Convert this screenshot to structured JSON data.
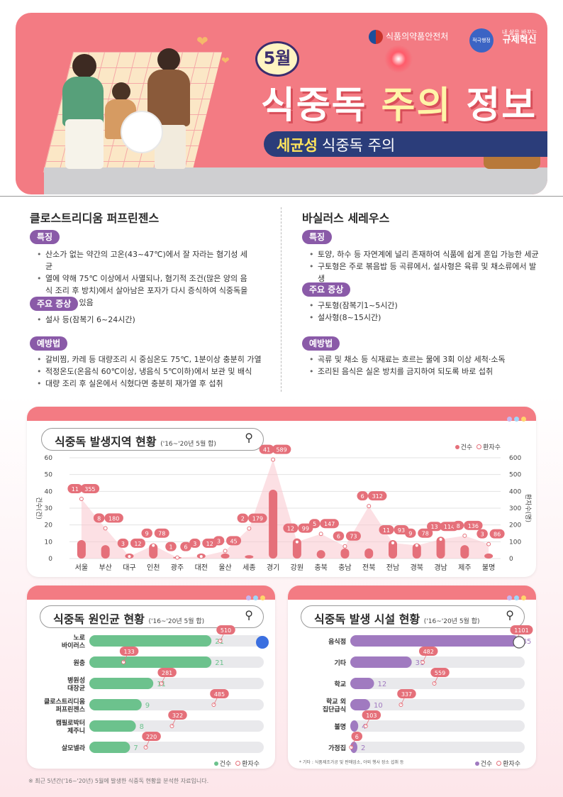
{
  "header": {
    "month": "5월",
    "title_a": "식중독 ",
    "title_b": "주의",
    "title_c": " 정보",
    "sub_bold": "세균성",
    "sub_rest": "식중독 주의",
    "logo_mfds": "식품의약품안전처",
    "logo_badge": "적극행정",
    "logo_reg_top": "내 삶을 바꾸는",
    "logo_reg": "규제혁신",
    "accent": "#f37b83",
    "navy": "#2b3d7a",
    "yellow": "#ffe45c"
  },
  "left": {
    "title": "클로스트리디움 퍼프린젠스",
    "tag1": "특징",
    "feat": [
      "산소가 없는 약간의 고온(43~47℃)에서 잘 자라는 혐기성 세균",
      "열에 약해 75℃ 이상에서 사멸되나, 혐기적 조건(많은 양의 음식 조리 후 방치)에서 살아남은 포자가 다시 증식하여 식중독을 유발할 수 있음"
    ],
    "tag2": "주요 증상",
    "symp": [
      "설사 등(잠복기 6~24시간)"
    ],
    "tag3": "예방법",
    "prev": [
      "갈비찜, 카레 등 대량조리 시 중심온도 75℃, 1분이상 충분히 가열",
      "적정온도(온음식 60℃이상, 냉음식 5℃이하)에서 보관 및 배식",
      "대량 조리 후 실온에서 식혔다면 충분히 재가열 후 섭취"
    ]
  },
  "right": {
    "title": "바실러스 세레우스",
    "tag1": "특징",
    "feat": [
      "토양, 하수 등 자연계에 널리 존재하여 식품에 쉽게 혼입 가능한 세균",
      "구토형은 주로 볶음밥 등 곡류에서, 설사형은 육류 및 채소류에서 발생"
    ],
    "tag2": "주요 증상",
    "symp": [
      "구토형(잠복기1~5시간)",
      "설사형(8~15시간)"
    ],
    "tag3": "예방법",
    "prev": [
      "곡류 및 채소 등 식재료는 흐르는 물에 3회 이상 세척·소독",
      "조리된 음식은 실온 방치를 금지하여 되도록 바로 섭취"
    ]
  },
  "legend": {
    "cases": "건수",
    "patients": "환자수",
    "case_color": "#e5707a"
  },
  "chart_data": [
    {
      "type": "bar",
      "title": "식중독 발생지역 현황",
      "subtitle": "('16~'20년 5월 합)",
      "ylabel": "건수(건)",
      "y2label": "환자수(명)",
      "ylim": [
        0,
        60
      ],
      "y2lim": [
        0,
        600
      ],
      "yticks": [
        0,
        10,
        20,
        30,
        40,
        50,
        60
      ],
      "y2ticks": [
        0,
        100,
        200,
        300,
        400,
        500,
        600
      ],
      "categories": [
        "서울",
        "부산",
        "대구",
        "인천",
        "광주",
        "대전",
        "울산",
        "세종",
        "경기",
        "강원",
        "충북",
        "충남",
        "전북",
        "전남",
        "경북",
        "경남",
        "제주",
        "불명"
      ],
      "series": [
        {
          "name": "건수",
          "values": [
            11,
            8,
            3,
            9,
            1,
            3,
            3,
            2,
            41,
            12,
            5,
            6,
            6,
            11,
            9,
            13,
            8,
            3
          ]
        },
        {
          "name": "환자수",
          "values": [
            355,
            180,
            12,
            78,
            6,
            12,
            45,
            179,
            589,
            99,
            147,
            73,
            312,
            93,
            78,
            114,
            136,
            86
          ]
        }
      ]
    },
    {
      "type": "bar",
      "title": "식중독 원인균 현황",
      "subtitle": "('16~'20년 5월 합)",
      "categories": [
        "노로\n바이러스",
        "원충",
        "병원성\n대장균",
        "클로스트리디움\n퍼프린젠스",
        "캠필로박터\n제주니",
        "살모넬라"
      ],
      "series": [
        {
          "name": "건수",
          "values": [
            21,
            21,
            11,
            9,
            8,
            7
          ]
        },
        {
          "name": "환자수",
          "values": [
            510,
            133,
            281,
            485,
            322,
            220
          ]
        }
      ]
    },
    {
      "type": "bar",
      "title": "식중독 발생 시설 현황",
      "subtitle": "('16~'20년 5월 합)",
      "categories": [
        "음식점",
        "기타",
        "학교",
        "학교 외\n집단급식",
        "불명",
        "가정집"
      ],
      "series": [
        {
          "name": "건수",
          "values": [
            85,
            31,
            12,
            10,
            4,
            2
          ]
        },
        {
          "name": "환자수",
          "values": [
            1101,
            482,
            559,
            337,
            103,
            6
          ]
        }
      ],
      "note": "* 기타 : 식품제조가공 및 판매업소, 야외 행사 장소 섭취 등"
    }
  ],
  "footer": "※ 최근 5년간('16~'20년) 5월에 발생한 식중독 현황을 분석한 자료입니다."
}
